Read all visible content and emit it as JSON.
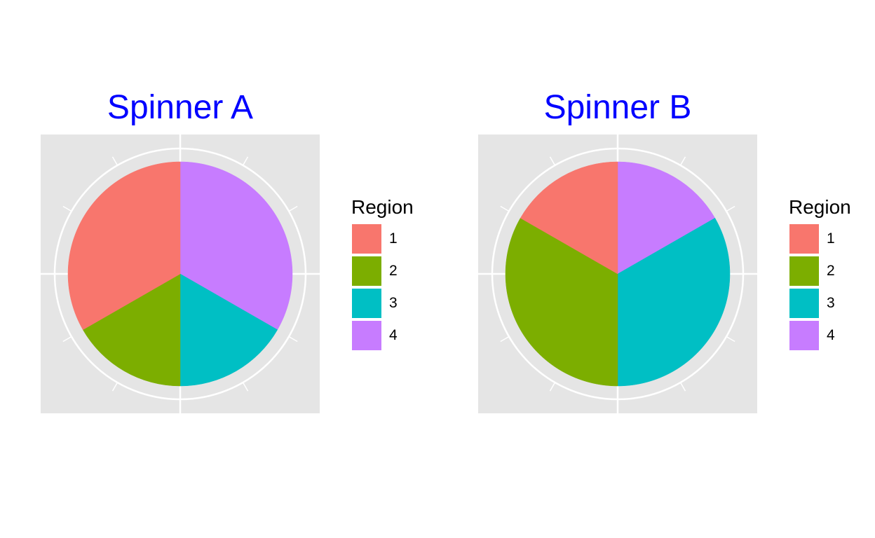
{
  "chart_data": [
    {
      "type": "pie",
      "title": "Spinner A",
      "legend_title": "Region",
      "legend_position": "right",
      "grid": true,
      "start_angle_deg": 0,
      "direction": "clockwise",
      "categories": [
        "1",
        "2",
        "3",
        "4"
      ],
      "values": [
        0.333,
        0.167,
        0.167,
        0.333
      ],
      "slice_order": [
        "4",
        "3",
        "2",
        "1"
      ],
      "colors": [
        "#F8766D",
        "#7CAE00",
        "#00BFC4",
        "#C77CFF"
      ]
    },
    {
      "type": "pie",
      "title": "Spinner B",
      "legend_title": "Region",
      "legend_position": "right",
      "grid": true,
      "start_angle_deg": 0,
      "direction": "clockwise",
      "categories": [
        "1",
        "2",
        "3",
        "4"
      ],
      "values": [
        0.167,
        0.333,
        0.333,
        0.167
      ],
      "slice_order": [
        "4",
        "3",
        "2",
        "1"
      ],
      "colors": [
        "#F8766D",
        "#7CAE00",
        "#00BFC4",
        "#C77CFF"
      ]
    }
  ],
  "style": {
    "title_color": "#0000ff",
    "panel_background": "#e5e5e5",
    "grid_color": "#ffffff"
  }
}
